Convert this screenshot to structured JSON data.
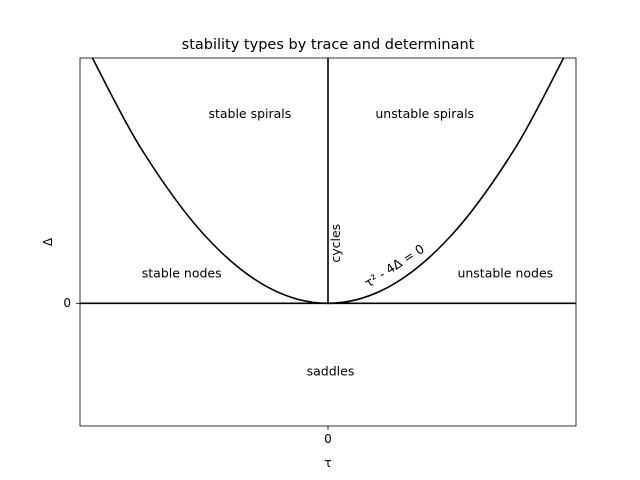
{
  "chart_data": {
    "type": "line",
    "title": "stability types by trace and determinant",
    "xlabel": "τ",
    "ylabel": "Δ",
    "xlim": [
      -2.0,
      2.0
    ],
    "ylim": [
      -1.0,
      2.0
    ],
    "x_ticks": [
      {
        "value": 0,
        "label": "0"
      }
    ],
    "y_ticks": [
      {
        "value": 0,
        "label": "0"
      }
    ],
    "grid": false,
    "series": [
      {
        "label": "τ² - 4Δ = 0",
        "color": "#000000",
        "x": [
          -1.9,
          -1.5,
          -1.0,
          -0.5,
          0.0,
          0.5,
          1.0,
          1.5,
          1.9
        ],
        "y": [
          2.0,
          1.25,
          0.56,
          0.14,
          0.0,
          0.14,
          0.56,
          1.25,
          2.0
        ]
      },
      {
        "label": "cycles",
        "color": "#000000",
        "x": [
          0.0,
          0.0
        ],
        "y": [
          0.0,
          2.0
        ]
      },
      {
        "color": "#000000",
        "x": [
          -2.0,
          2.0
        ],
        "y": [
          0.0,
          0.0
        ]
      }
    ],
    "annotations": [
      {
        "text": "stable spirals",
        "x": -0.63,
        "y": 1.54
      },
      {
        "text": "unstable spirals",
        "x": 0.78,
        "y": 1.54
      },
      {
        "text": "stable nodes",
        "x": -1.18,
        "y": 0.24
      },
      {
        "text": "unstable nodes",
        "x": 1.43,
        "y": 0.24
      },
      {
        "text": "saddles",
        "x": 0.02,
        "y": -0.56
      },
      {
        "text": "cycles",
        "x": 0.07,
        "y": 0.49,
        "rotation": -90
      },
      {
        "text": "τ² - 4Δ = 0",
        "x": 0.54,
        "y": 0.3,
        "rotation": -33
      }
    ]
  }
}
